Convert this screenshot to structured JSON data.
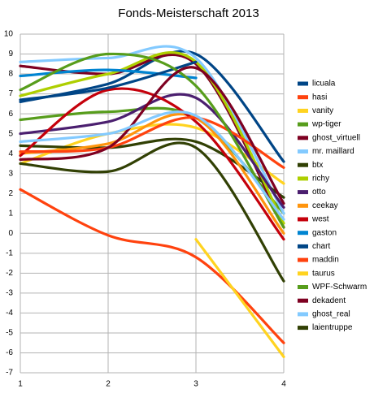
{
  "chart_data": {
    "type": "line",
    "title": "Fonds-Meisterschaft 2013",
    "x": [
      1,
      2,
      3,
      4
    ],
    "xlim": [
      1,
      4
    ],
    "xticks": [
      1,
      2,
      3,
      4
    ],
    "ylim": [
      -7,
      10
    ],
    "yticks": [
      -7,
      -6,
      -5,
      -4,
      -3,
      -2,
      -1,
      0,
      1,
      2,
      3,
      4,
      5,
      6,
      7,
      8,
      9,
      10
    ],
    "grid": true,
    "smooth": true,
    "legend": "right",
    "series": [
      {
        "name": "licuala",
        "color": "#004586",
        "values": [
          6.6,
          7.5,
          9.0,
          3.6
        ]
      },
      {
        "name": "hasi",
        "color": "#ff420e",
        "values": [
          2.2,
          -0.1,
          -1.2,
          -5.5
        ]
      },
      {
        "name": "vanity",
        "color": "#ffd320",
        "values": [
          3.5,
          5.0,
          5.3,
          2.5
        ]
      },
      {
        "name": "wp-tiger",
        "color": "#579d1c",
        "values": [
          5.7,
          6.1,
          5.8,
          1.0
        ]
      },
      {
        "name": "ghost_virtuell",
        "color": "#7e0021",
        "values": [
          8.4,
          8.0,
          8.5,
          0.3
        ]
      },
      {
        "name": "mr. maillard",
        "color": "#83caff",
        "values": [
          8.6,
          8.8,
          8.8,
          1.0
        ]
      },
      {
        "name": "btx",
        "color": "#314004",
        "values": [
          4.4,
          4.3,
          4.6,
          1.8
        ]
      },
      {
        "name": "richy",
        "color": "#aecf00",
        "values": [
          6.9,
          8.0,
          8.6,
          0.5
        ]
      },
      {
        "name": "otto",
        "color": "#4b1f6f",
        "values": [
          5.0,
          5.6,
          6.8,
          1.3
        ]
      },
      {
        "name": "ceekay",
        "color": "#ff950e",
        "values": [
          4.0,
          4.5,
          5.8,
          0.0
        ]
      },
      {
        "name": "west",
        "color": "#c5000b",
        "values": [
          3.9,
          7.2,
          5.6,
          -0.3
        ]
      },
      {
        "name": "gaston",
        "color": "#0084d1",
        "values": [
          7.9,
          8.2,
          7.8,
          null
        ]
      },
      {
        "name": "chart",
        "color": "#004586",
        "values": [
          6.7,
          7.3,
          8.6,
          null
        ]
      },
      {
        "name": "maddin",
        "color": "#ff420e",
        "values": [
          4.1,
          4.3,
          5.8,
          3.3
        ]
      },
      {
        "name": "taurus",
        "color": "#ffd320",
        "values": [
          null,
          null,
          -0.3,
          -6.2
        ]
      },
      {
        "name": "WPF-Schwarm",
        "color": "#579d1c",
        "values": [
          7.2,
          9.0,
          7.4,
          0.3
        ]
      },
      {
        "name": "dekadent",
        "color": "#7e0021",
        "values": [
          3.7,
          4.3,
          8.3,
          1.5
        ]
      },
      {
        "name": "ghost_real",
        "color": "#83caff",
        "values": [
          4.6,
          5.0,
          5.9,
          0.7
        ]
      },
      {
        "name": "laientruppe",
        "color": "#314004",
        "values": [
          3.5,
          3.1,
          4.3,
          -2.4
        ]
      }
    ]
  }
}
